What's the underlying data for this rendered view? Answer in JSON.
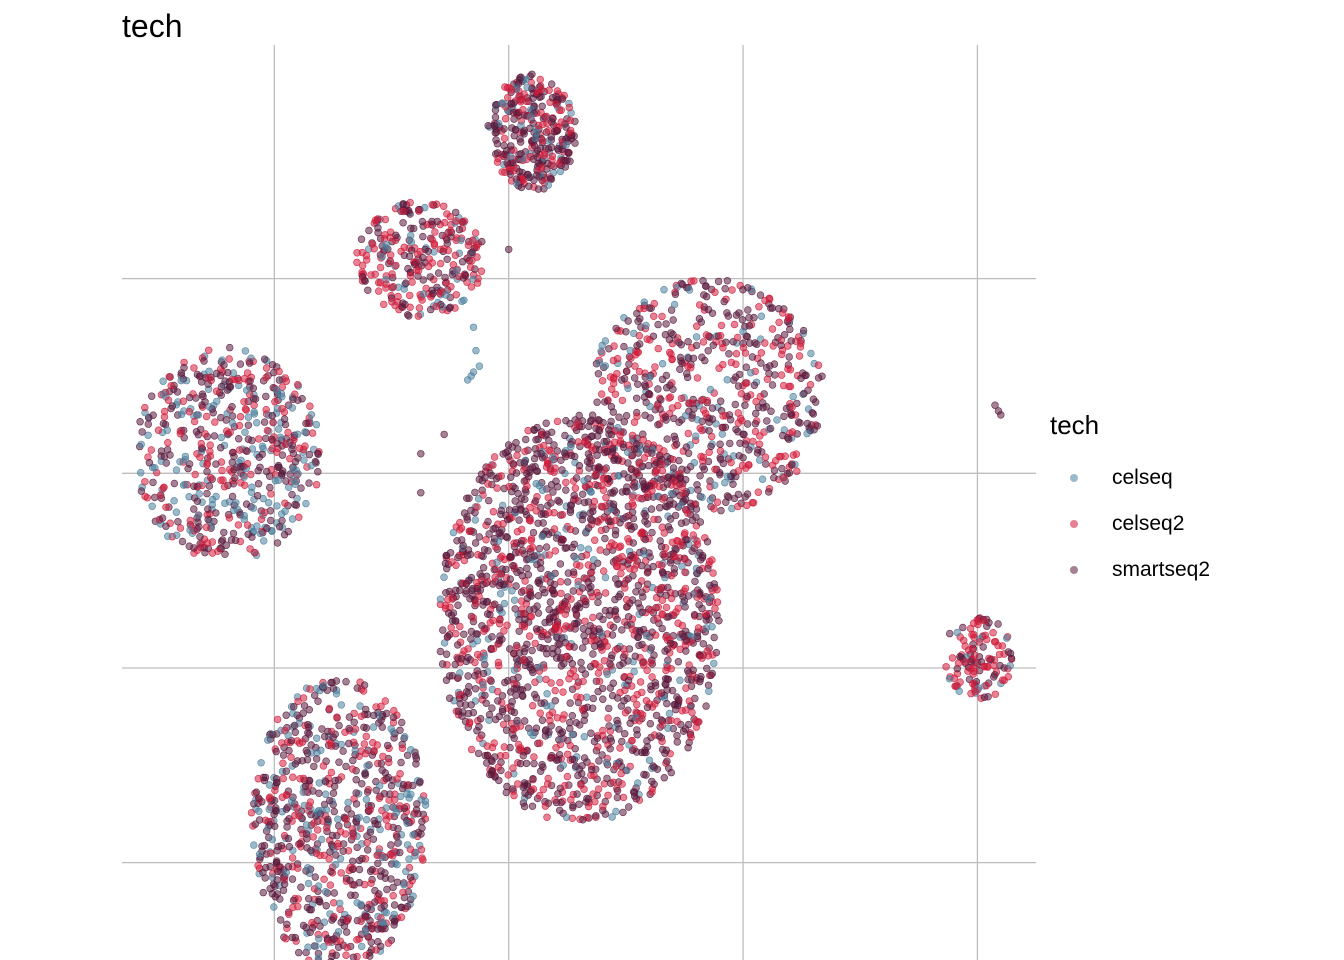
{
  "chart_data": {
    "type": "scatter",
    "title": "tech",
    "xlabel": "",
    "ylabel": "",
    "grid": true,
    "axis_ticks_visible": false,
    "legend": {
      "title": "tech",
      "placement": "right",
      "entries": [
        {
          "name": "celseq",
          "color": "#4a7f9c"
        },
        {
          "name": "celseq2",
          "color": "#d21c3a"
        },
        {
          "name": "smartseq2",
          "color": "#5a1a3c"
        }
      ]
    },
    "point_opacity": 0.55,
    "clusters": [
      {
        "id": "top-center",
        "cx": 0.2,
        "cy": 1.75,
        "rx": 0.38,
        "ry": 0.3,
        "n": 320,
        "mix": [
          0.12,
          0.35,
          0.53
        ]
      },
      {
        "id": "upper-left",
        "cx": -0.75,
        "cy": 1.1,
        "rx": 0.55,
        "ry": 0.3,
        "n": 280,
        "mix": [
          0.12,
          0.5,
          0.38
        ]
      },
      {
        "id": "right-upper",
        "cx": 1.7,
        "cy": 0.4,
        "rx": 1.0,
        "ry": 0.6,
        "n": 650,
        "mix": [
          0.12,
          0.38,
          0.5
        ]
      },
      {
        "id": "left-middle",
        "cx": -2.4,
        "cy": 0.1,
        "rx": 0.8,
        "ry": 0.55,
        "n": 560,
        "mix": [
          0.28,
          0.32,
          0.4
        ]
      },
      {
        "id": "center-large",
        "cx": 0.6,
        "cy": -0.75,
        "rx": 1.2,
        "ry": 1.05,
        "n": 1900,
        "mix": [
          0.1,
          0.32,
          0.58
        ]
      },
      {
        "id": "bottom-left",
        "cx": -1.45,
        "cy": -1.8,
        "rx": 0.75,
        "ry": 0.75,
        "n": 800,
        "mix": [
          0.2,
          0.3,
          0.5
        ]
      },
      {
        "id": "far-right",
        "cx": 4.0,
        "cy": -0.95,
        "rx": 0.3,
        "ry": 0.22,
        "n": 120,
        "mix": [
          0.1,
          0.5,
          0.4
        ]
      }
    ],
    "small_groups": [
      {
        "id": "blue-trail",
        "x": [
          -0.3,
          -0.28,
          -0.25,
          -0.32,
          -0.35,
          -0.3
        ],
        "y": [
          0.75,
          0.63,
          0.55,
          0.5,
          0.48,
          0.52
        ],
        "tech": "celseq"
      },
      {
        "id": "far-right-pair",
        "x": [
          4.15,
          4.18,
          4.2
        ],
        "y": [
          0.35,
          0.32,
          0.3
        ],
        "tech": "smartseq2"
      },
      {
        "id": "mid-right-strip",
        "x": [
          2.0,
          2.02,
          2.05,
          2.0
        ],
        "y": [
          0.2,
          0.15,
          0.12,
          0.08
        ],
        "tech": "smartseq2"
      },
      {
        "id": "isolated",
        "x": [
          -0.0,
          -0.55,
          -0.75,
          -0.75,
          -0.18,
          -0.2
        ],
        "y": [
          1.15,
          0.2,
          0.1,
          -0.1,
          -1.45,
          -1.45
        ],
        "tech": "smartseq2"
      }
    ],
    "xlim": [
      -3.3,
      4.5
    ],
    "ylim": [
      -2.5,
      2.2
    ]
  }
}
